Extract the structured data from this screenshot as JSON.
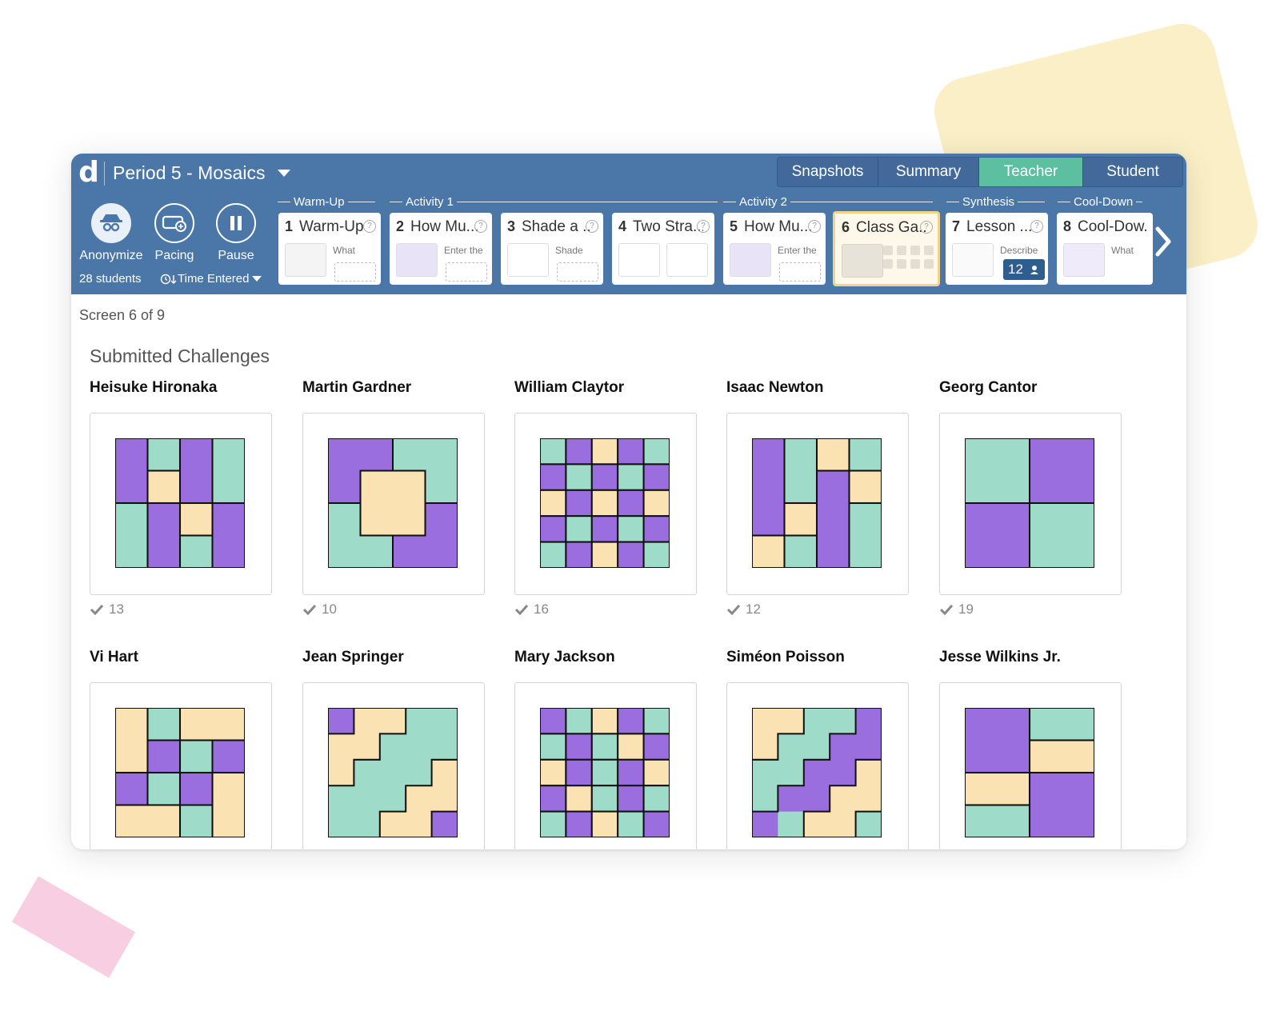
{
  "colors": {
    "purple": "#9b6ee0",
    "teal": "#9edcc9",
    "cream": "#fae2b2",
    "brand_blue": "#4b76a8",
    "active_tab": "#5bbfa0"
  },
  "app": {
    "logo": "d",
    "class_title": "Period 5 - Mosaics"
  },
  "view_tabs": [
    {
      "label": "Snapshots",
      "active": false
    },
    {
      "label": "Summary",
      "active": false
    },
    {
      "label": "Teacher",
      "active": true
    },
    {
      "label": "Student",
      "active": false
    }
  ],
  "controls": {
    "anonymize": "Anonymize",
    "pacing": "Pacing",
    "pause": "Pause",
    "students": "28 students",
    "sort": "Time Entered"
  },
  "sections": [
    "Warm-Up",
    "Activity 1",
    "Activity 2",
    "Synthesis",
    "Cool-Down"
  ],
  "screens": [
    {
      "num": "1",
      "title": "Warm-Up",
      "snippet": "What",
      "icon": "warmup-thumb-icon"
    },
    {
      "num": "2",
      "title": "How Mu...",
      "snippet": "Enter the",
      "icon": "mosaic-thumb-icon"
    },
    {
      "num": "3",
      "title": "Shade a ...",
      "snippet": "Shade",
      "icon": "grid-thumb-icon"
    },
    {
      "num": "4",
      "title": "Two Stra...",
      "snippet": "",
      "icon": "strategy-thumb-icon"
    },
    {
      "num": "5",
      "title": "How Mu...",
      "snippet": "Enter the",
      "icon": "mosaic-thumb-icon"
    },
    {
      "num": "6",
      "title": "Class Ga...",
      "snippet": "",
      "icon": "gallery-thumb-icon",
      "active": true
    },
    {
      "num": "7",
      "title": "Lesson ...",
      "snippet": "Describe",
      "icon": "sketch-thumb-icon",
      "badge": "12"
    },
    {
      "num": "8",
      "title": "Cool-Dow...",
      "snippet": "What",
      "icon": "cooldown-thumb-icon"
    }
  ],
  "screen_status": "Screen 6 of 9",
  "gallery": {
    "heading": "Submitted Challenges",
    "students": [
      {
        "name": "Heisuke Hironaka",
        "votes": "13"
      },
      {
        "name": "Martin Gardner",
        "votes": "10"
      },
      {
        "name": "William Claytor",
        "votes": "16"
      },
      {
        "name": "Isaac Newton",
        "votes": "12"
      },
      {
        "name": "Georg Cantor",
        "votes": "19"
      },
      {
        "name": "Vi Hart",
        "votes": ""
      },
      {
        "name": "Jean Springer",
        "votes": ""
      },
      {
        "name": "Mary Jackson",
        "votes": ""
      },
      {
        "name": "Siméon Poisson",
        "votes": ""
      },
      {
        "name": "Jesse Wilkins Jr.",
        "votes": ""
      }
    ]
  }
}
